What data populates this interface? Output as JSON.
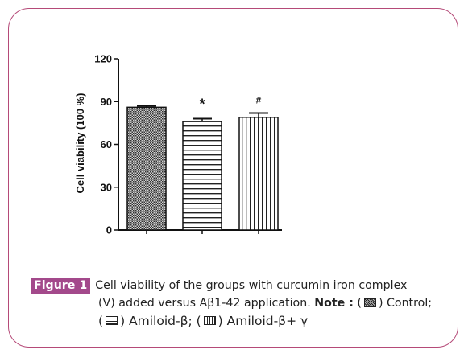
{
  "chart_data": {
    "type": "bar",
    "ylabel": "Cell viability (100 %)",
    "ylim": [
      0,
      120
    ],
    "yticks": [
      0,
      30,
      60,
      90,
      120
    ],
    "categories": [
      "Control",
      "Amiloid-β",
      "Amiloid-β+ γ"
    ],
    "values": [
      86,
      76,
      79
    ],
    "errors": [
      1,
      2,
      3
    ],
    "patterns": [
      "crosshatch",
      "horizontal",
      "vertical"
    ],
    "annotations": [
      "",
      "*",
      "#"
    ],
    "grid": false
  },
  "caption": {
    "badge": "Figure 1",
    "line1": "Cell viability of the groups with curcumin iron complex",
    "line2_text": "(V) added versus Aβ1-42 application.",
    "note_label": "Note :",
    "note_open": "(",
    "control_label": ") Control;",
    "line3_open": "(",
    "amyloid_label": ") Amiloid-β; (",
    "amyloid_gamma_label": ") Amiloid-β+ γ"
  },
  "colors": {
    "border": "#b54a78",
    "badge": "#a3498b"
  }
}
